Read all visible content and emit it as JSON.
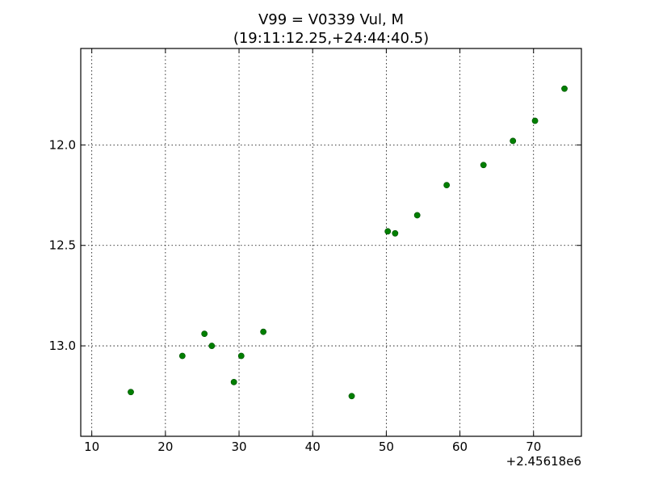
{
  "chart_data": {
    "type": "scatter",
    "title_line1": "V99 = V0339 Vul, M",
    "title_line2": "(19:11:12.25,+24:44:40.5)",
    "xlabel": "",
    "ylabel": "",
    "x_offset_label": "+2.45618e6",
    "x_ticks": [
      10,
      20,
      30,
      40,
      50,
      60,
      70
    ],
    "y_ticks": [
      12.0,
      12.5,
      13.0
    ],
    "y_tick_labels": [
      "12.0",
      "12.5",
      "13.0"
    ],
    "xlim": [
      8.5,
      76.5
    ],
    "ylim": [
      13.45,
      11.52
    ],
    "y_inverted": true,
    "grid": true,
    "marker_color": "#007f00",
    "series": [
      {
        "x": [
          15.3,
          22.3,
          25.3,
          26.3,
          29.3,
          30.3,
          33.3,
          45.3,
          50.2,
          51.2,
          54.2,
          58.2,
          63.2,
          67.2,
          70.2,
          74.2
        ],
        "y": [
          13.23,
          13.05,
          12.94,
          13.0,
          13.18,
          13.05,
          12.93,
          13.25,
          12.43,
          12.44,
          12.35,
          12.2,
          12.1,
          11.98,
          11.88,
          11.72
        ]
      }
    ]
  }
}
